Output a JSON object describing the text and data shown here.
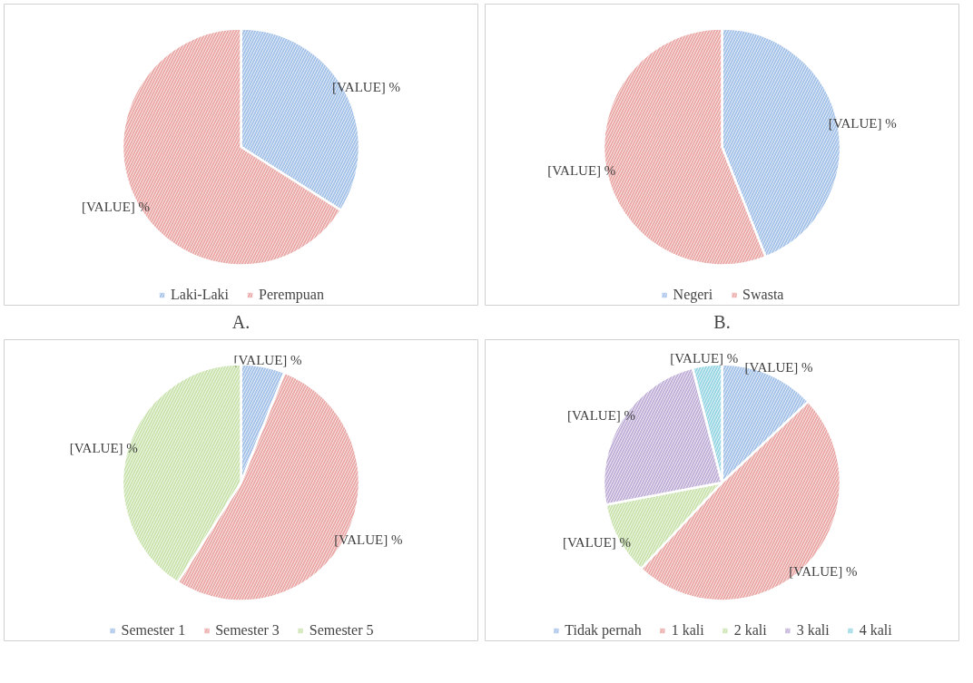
{
  "chart_data": [
    {
      "type": "pie",
      "annotations": [
        "A."
      ],
      "categories": [
        "Laki-Laki",
        "Perempuan"
      ],
      "values": [
        34,
        66
      ],
      "colors": [
        "#5b8fd6",
        "#d9605e"
      ],
      "value_labels": [
        "[VALUE] %",
        "[VALUE] %"
      ],
      "legend": "bottom"
    },
    {
      "type": "pie",
      "annotations": [
        "B."
      ],
      "categories": [
        "Negeri",
        "Swasta"
      ],
      "values": [
        44,
        56
      ],
      "colors": [
        "#5b8fd6",
        "#d9605e"
      ],
      "value_labels": [
        "[VALUE] %",
        "[VALUE] %"
      ],
      "legend": "bottom"
    },
    {
      "type": "pie",
      "categories": [
        "Semester 1",
        "Semester 3",
        "Semester 5"
      ],
      "values": [
        6,
        53,
        41
      ],
      "colors": [
        "#5b8fd6",
        "#d9605e",
        "#9fcc6b"
      ],
      "value_labels": [
        "[VALUE] %",
        "[VALUE] %",
        "[VALUE] %"
      ],
      "legend": "bottom"
    },
    {
      "type": "pie",
      "categories": [
        "Tidak pernah",
        "1 kali",
        "2 kali",
        "3 kali",
        "4 kali"
      ],
      "values": [
        13,
        49,
        10,
        24,
        4
      ],
      "colors": [
        "#5b8fd6",
        "#d9605e",
        "#9fcc6b",
        "#8c6fb8",
        "#45b5cc"
      ],
      "value_labels": [
        "[VALUE] %",
        "[VALUE] %",
        "[VALUE] %",
        "[VALUE] %",
        "[VALUE] %"
      ],
      "legend": "bottom"
    }
  ]
}
